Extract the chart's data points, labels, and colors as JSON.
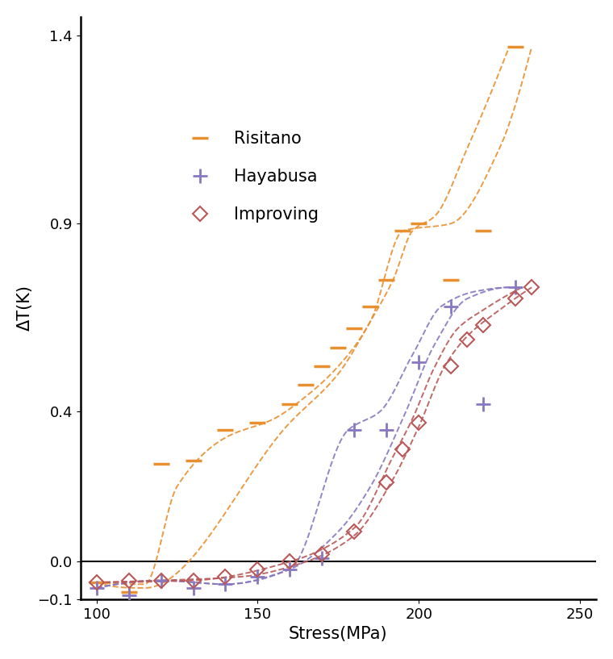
{
  "xlabel": "Stress(MPa)",
  "ylabel": "ΔT(K)",
  "xlim": [
    95,
    255
  ],
  "ylim": [
    -0.1,
    1.45
  ],
  "xticks": [
    100,
    150,
    200,
    250
  ],
  "yticks": [
    -0.1,
    0.0,
    0.4,
    0.9,
    1.4
  ],
  "risitano_x": [
    100,
    110,
    120,
    130,
    140,
    150,
    160,
    165,
    170,
    175,
    180,
    185,
    190,
    195,
    200,
    210,
    220,
    230
  ],
  "risitano_y": [
    -0.055,
    -0.08,
    0.26,
    0.27,
    0.35,
    0.37,
    0.42,
    0.47,
    0.52,
    0.57,
    0.62,
    0.68,
    0.75,
    0.88,
    0.9,
    0.75,
    0.88,
    1.37
  ],
  "hayabusa_x": [
    100,
    110,
    120,
    130,
    140,
    150,
    160,
    170,
    180,
    190,
    200,
    210,
    220,
    230
  ],
  "hayabusa_y": [
    -0.07,
    -0.09,
    -0.05,
    -0.07,
    -0.06,
    -0.04,
    -0.02,
    0.01,
    0.35,
    0.35,
    0.53,
    0.68,
    0.42,
    0.73
  ],
  "improving_x": [
    100,
    110,
    120,
    130,
    140,
    150,
    160,
    170,
    180,
    190,
    195,
    200,
    210,
    215,
    220,
    230,
    235
  ],
  "improving_y": [
    -0.055,
    -0.05,
    -0.05,
    -0.05,
    -0.04,
    -0.02,
    0.0,
    0.02,
    0.08,
    0.21,
    0.3,
    0.37,
    0.52,
    0.59,
    0.63,
    0.7,
    0.73
  ],
  "risitano_curve1_x": [
    100,
    115,
    125,
    140,
    155,
    165,
    175,
    185,
    195,
    210,
    225,
    235
  ],
  "risitano_curve1_y": [
    -0.055,
    -0.06,
    0.2,
    0.33,
    0.38,
    0.44,
    0.52,
    0.64,
    0.88,
    0.9,
    1.1,
    1.37
  ],
  "risitano_curve2_x": [
    100,
    115,
    160,
    175,
    185,
    192,
    198,
    205,
    215,
    228
  ],
  "risitano_curve2_y": [
    -0.055,
    -0.07,
    0.37,
    0.5,
    0.64,
    0.75,
    0.88,
    0.92,
    1.1,
    1.37
  ],
  "hayabusa_curve1_x": [
    100,
    120,
    140,
    160,
    175,
    185,
    195,
    205,
    215,
    228
  ],
  "hayabusa_curve1_y": [
    -0.07,
    -0.05,
    -0.06,
    -0.02,
    0.08,
    0.2,
    0.38,
    0.58,
    0.7,
    0.73
  ],
  "hayabusa_curve2_x": [
    100,
    120,
    140,
    160,
    178,
    188,
    198,
    207,
    218,
    228
  ],
  "hayabusa_curve2_y": [
    -0.07,
    -0.05,
    -0.06,
    -0.02,
    0.35,
    0.4,
    0.55,
    0.68,
    0.72,
    0.73
  ],
  "improving_curve1_x": [
    100,
    120,
    145,
    165,
    180,
    192,
    200,
    208,
    215,
    225,
    235
  ],
  "improving_curve1_y": [
    -0.055,
    -0.05,
    -0.04,
    0.0,
    0.07,
    0.22,
    0.36,
    0.52,
    0.6,
    0.67,
    0.73
  ],
  "improving_curve2_x": [
    100,
    130,
    160,
    180,
    192,
    198,
    205,
    212,
    220,
    232
  ],
  "improving_curve2_y": [
    -0.055,
    -0.05,
    0.0,
    0.09,
    0.28,
    0.38,
    0.52,
    0.62,
    0.67,
    0.73
  ],
  "risitano_color": "#E89030",
  "hayabusa_color": "#8878C0",
  "improving_color": "#B85858",
  "legend_labels": [
    "Risitano",
    "Hayabusa",
    "Improving"
  ],
  "line_width": 1.4
}
